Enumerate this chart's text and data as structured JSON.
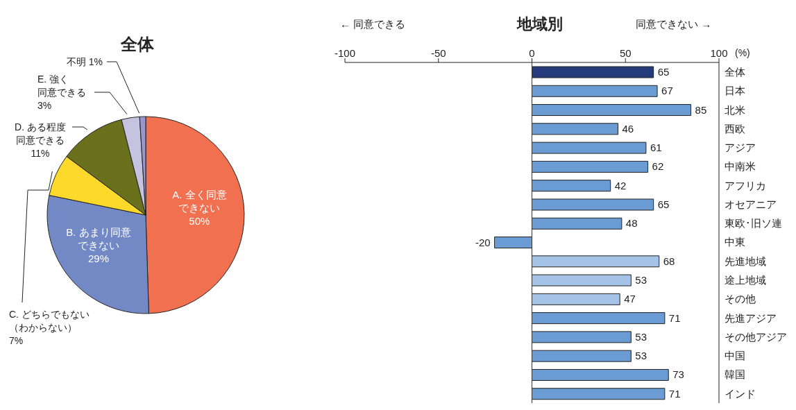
{
  "chart_data": [
    {
      "type": "pie",
      "title": "全体",
      "categories": [
        "A. 全く同意できない",
        "B. あまり同意できない",
        "C. どちらでもない（わからない）",
        "D. ある程度同意できる",
        "E. 強く同意できる",
        "不明"
      ],
      "values": [
        50,
        29,
        7,
        11,
        3,
        1
      ],
      "colors": [
        "#f07050",
        "#7289c5",
        "#fcd92a",
        "#6a701c",
        "#c6c3e0",
        "#9b95cc"
      ],
      "value_labels": [
        "50%",
        "29%",
        "7%",
        "11%",
        "3%",
        "1%"
      ]
    },
    {
      "type": "bar",
      "orientation": "horizontal",
      "title": "地域別",
      "annotations": [
        "← 同意できる",
        "同意できない →"
      ],
      "xlabel": "(%)",
      "categories": [
        "全体",
        "日本",
        "北米",
        "西欧",
        "アジア",
        "中南米",
        "アフリカ",
        "オセアニア",
        "東欧･旧ソ連",
        "中東",
        "先進地域",
        "途上地域",
        "その他",
        "先進アジア",
        "その他アジア",
        "中国",
        "韓国",
        "インド"
      ],
      "values": [
        65,
        67,
        85,
        46,
        61,
        62,
        42,
        65,
        48,
        -20,
        68,
        53,
        47,
        71,
        53,
        53,
        73,
        71
      ],
      "colors": [
        "#253a7a",
        "#6a9bd3",
        "#6a9bd3",
        "#6a9bd3",
        "#6a9bd3",
        "#6a9bd3",
        "#6a9bd3",
        "#6a9bd3",
        "#6a9bd3",
        "#6a9bd3",
        "#a4c3e6",
        "#a4c3e6",
        "#a4c3e6",
        "#6a9bd3",
        "#6a9bd3",
        "#6a9bd3",
        "#6a9bd3",
        "#6a9bd3"
      ],
      "xlim": [
        -100,
        100
      ],
      "xticks": [
        -100,
        -50,
        0,
        50,
        100
      ],
      "data_labels": true,
      "ref_lines": [
        {
          "axis": "x",
          "value": 0,
          "color": "#333333"
        }
      ]
    }
  ]
}
